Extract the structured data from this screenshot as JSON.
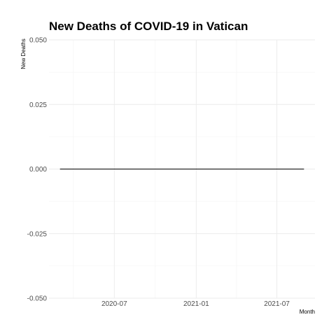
{
  "chart_data": {
    "type": "line",
    "title": "New Deaths of COVID-19 in Vatican",
    "xlabel": "Month",
    "ylabel": "New Deaths",
    "x_range": [
      "2020-03-01",
      "2021-08-31"
    ],
    "x_ticks": [
      {
        "date": "2020-07-01",
        "label": "2020-07"
      },
      {
        "date": "2021-01-01",
        "label": "2021-01"
      },
      {
        "date": "2021-07-01",
        "label": "2021-07"
      }
    ],
    "ylim": [
      -0.05,
      0.05
    ],
    "y_ticks": [
      {
        "value": 0.05,
        "label": "0.050"
      },
      {
        "value": 0.025,
        "label": "0.025"
      },
      {
        "value": 0.0,
        "label": "0.000"
      },
      {
        "value": -0.025,
        "label": "-0.025"
      },
      {
        "value": -0.05,
        "label": "-0.050"
      }
    ],
    "grid": true,
    "series": [
      {
        "color": "#000000",
        "x": [
          "2020-03-01",
          "2021-08-31"
        ],
        "values": [
          0,
          0
        ]
      }
    ]
  }
}
